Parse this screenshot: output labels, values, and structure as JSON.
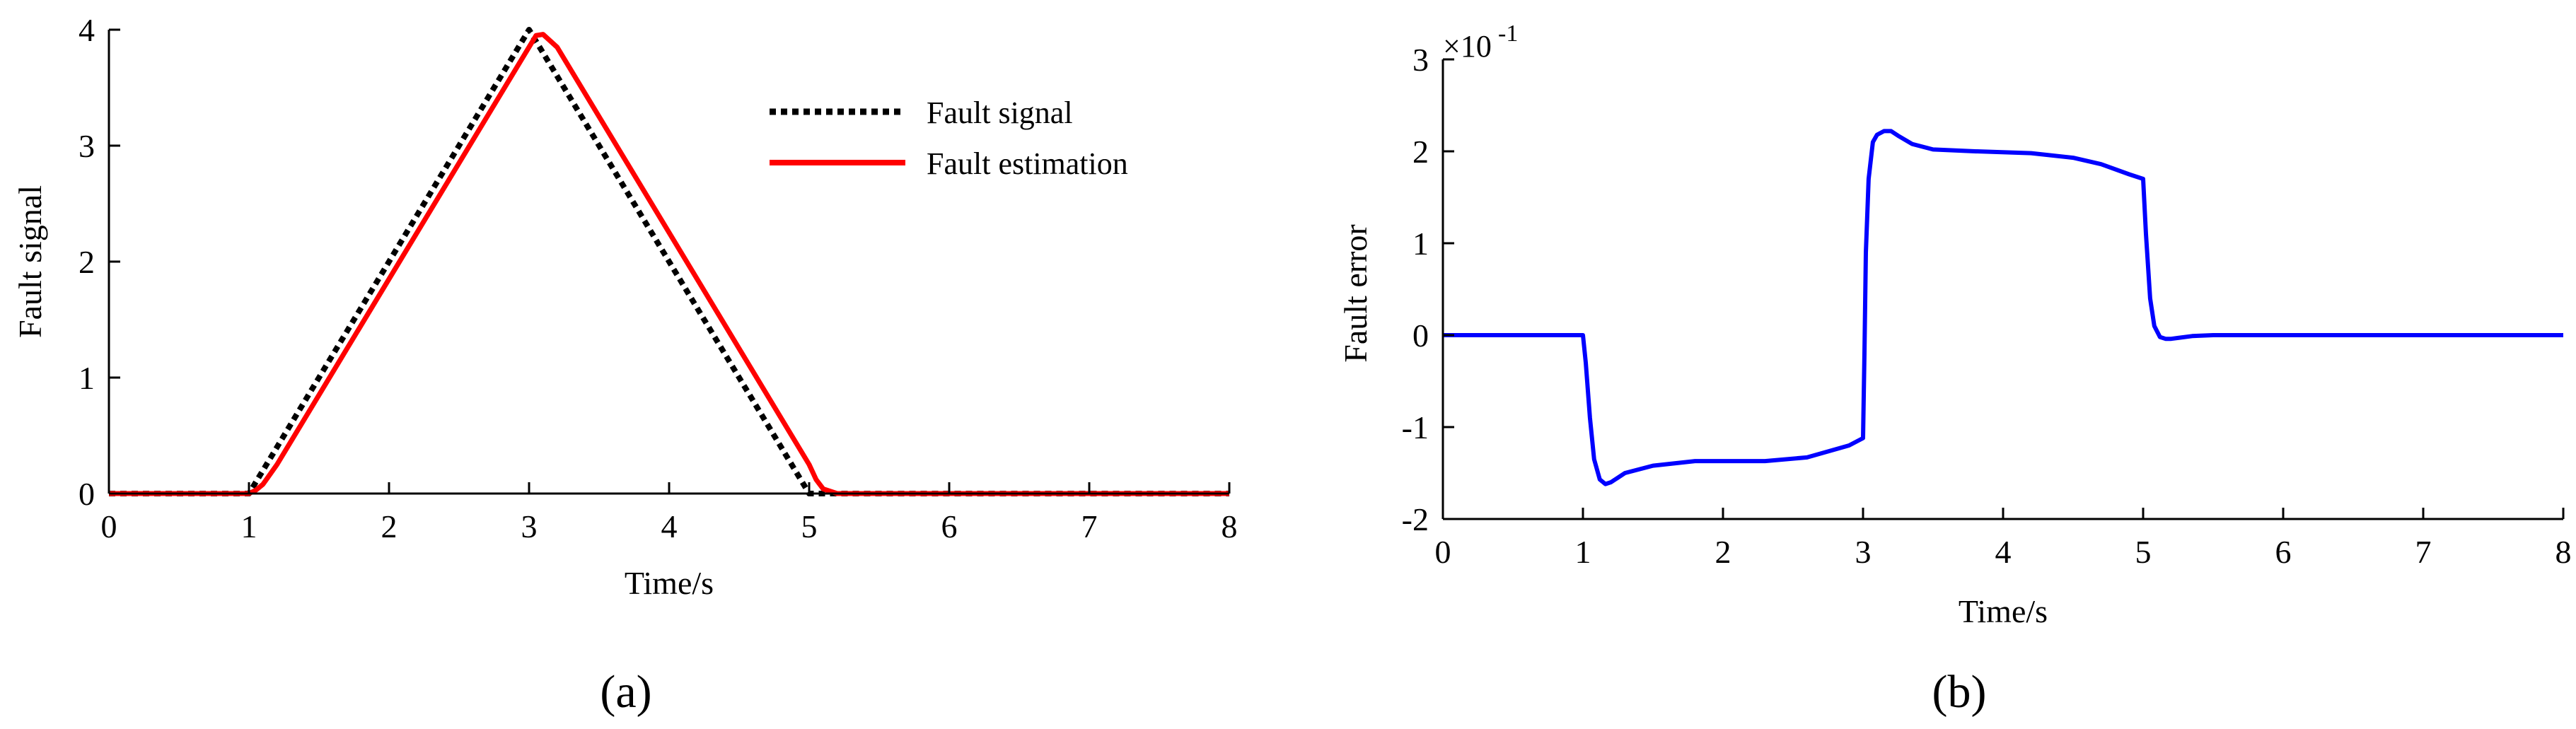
{
  "chart_data": [
    {
      "type": "line",
      "panel_label": "(a)",
      "xlabel": "Time/s",
      "ylabel": "Fault signal",
      "xlim": [
        0,
        8
      ],
      "ylim": [
        0,
        4
      ],
      "xticks": [
        "0",
        "1",
        "2",
        "3",
        "4",
        "5",
        "6",
        "7",
        "8"
      ],
      "yticks": [
        "0",
        "1",
        "2",
        "3",
        "4"
      ],
      "grid": false,
      "legend_position": "top-right",
      "series": [
        {
          "name": "Fault signal",
          "color": "#000000",
          "style": "dotted",
          "x": [
            0,
            1,
            3,
            5,
            8
          ],
          "y": [
            0,
            0,
            4,
            0,
            0
          ]
        },
        {
          "name": "Fault estimation",
          "color": "#ff0000",
          "style": "solid",
          "x": [
            0,
            1.0,
            1.05,
            1.1,
            1.2,
            3.0,
            3.05,
            3.1,
            3.2,
            5.0,
            5.05,
            5.1,
            5.2,
            8
          ],
          "y": [
            0,
            0,
            0.03,
            0.08,
            0.25,
            3.85,
            3.95,
            3.96,
            3.85,
            0.25,
            0.12,
            0.04,
            0,
            0
          ]
        }
      ]
    },
    {
      "type": "line",
      "panel_label": "(b)",
      "xlabel": "Time/s",
      "ylabel": "Fault error",
      "xlim": [
        0,
        8
      ],
      "ylim": [
        -2,
        3
      ],
      "xticks": [
        "0",
        "1",
        "2",
        "3",
        "4",
        "5",
        "6",
        "7",
        "8"
      ],
      "yticks": [
        "-2",
        "-1",
        "0",
        "1",
        "2",
        "3"
      ],
      "scale_note": {
        "prefix": "×10",
        "exponent": "-1"
      },
      "grid": false,
      "series": [
        {
          "color": "#0000ff",
          "style": "solid",
          "x": [
            0,
            1.0,
            1.02,
            1.05,
            1.08,
            1.12,
            1.16,
            1.2,
            1.3,
            1.5,
            1.8,
            2.0,
            2.3,
            2.6,
            2.9,
            3.0,
            3.01,
            3.02,
            3.04,
            3.07,
            3.1,
            3.15,
            3.2,
            3.25,
            3.35,
            3.5,
            3.8,
            4.2,
            4.5,
            4.7,
            4.9,
            5.0,
            5.02,
            5.05,
            5.08,
            5.12,
            5.16,
            5.2,
            5.25,
            5.35,
            5.5,
            6,
            8
          ],
          "y": [
            0,
            0,
            -0.3,
            -0.9,
            -1.35,
            -1.57,
            -1.62,
            -1.6,
            -1.5,
            -1.42,
            -1.37,
            -1.37,
            -1.37,
            -1.33,
            -1.2,
            -1.12,
            -0.2,
            0.9,
            1.7,
            2.1,
            2.18,
            2.22,
            2.22,
            2.17,
            2.08,
            2.02,
            2.0,
            1.98,
            1.93,
            1.86,
            1.75,
            1.7,
            1.1,
            0.4,
            0.1,
            -0.02,
            -0.04,
            -0.04,
            -0.03,
            -0.01,
            0,
            0,
            0
          ]
        }
      ]
    }
  ]
}
